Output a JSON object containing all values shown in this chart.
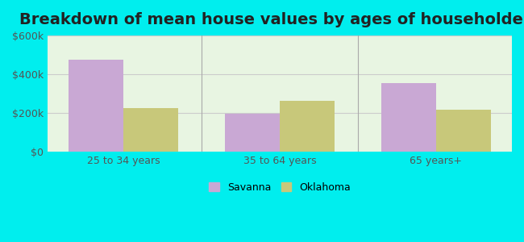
{
  "title": "Breakdown of mean house values by ages of householders",
  "categories": [
    "25 to 34 years",
    "35 to 64 years",
    "65 years+"
  ],
  "savanna_values": [
    475000,
    195000,
    355000
  ],
  "oklahoma_values": [
    225000,
    260000,
    215000
  ],
  "savanna_color": "#c9a8d4",
  "oklahoma_color": "#c8c87a",
  "ylim": [
    0,
    600000
  ],
  "yticks": [
    0,
    200000,
    400000,
    600000
  ],
  "ytick_labels": [
    "$0",
    "$200k",
    "$400k",
    "$600k"
  ],
  "bar_width": 0.35,
  "background_outer": "#00eeee",
  "background_inner_top": "#e8f5e8",
  "background_inner_bottom": "#f0ffe0",
  "grid_color": "#cccccc",
  "title_fontsize": 14,
  "legend_savanna": "Savanna",
  "legend_oklahoma": "Oklahoma"
}
